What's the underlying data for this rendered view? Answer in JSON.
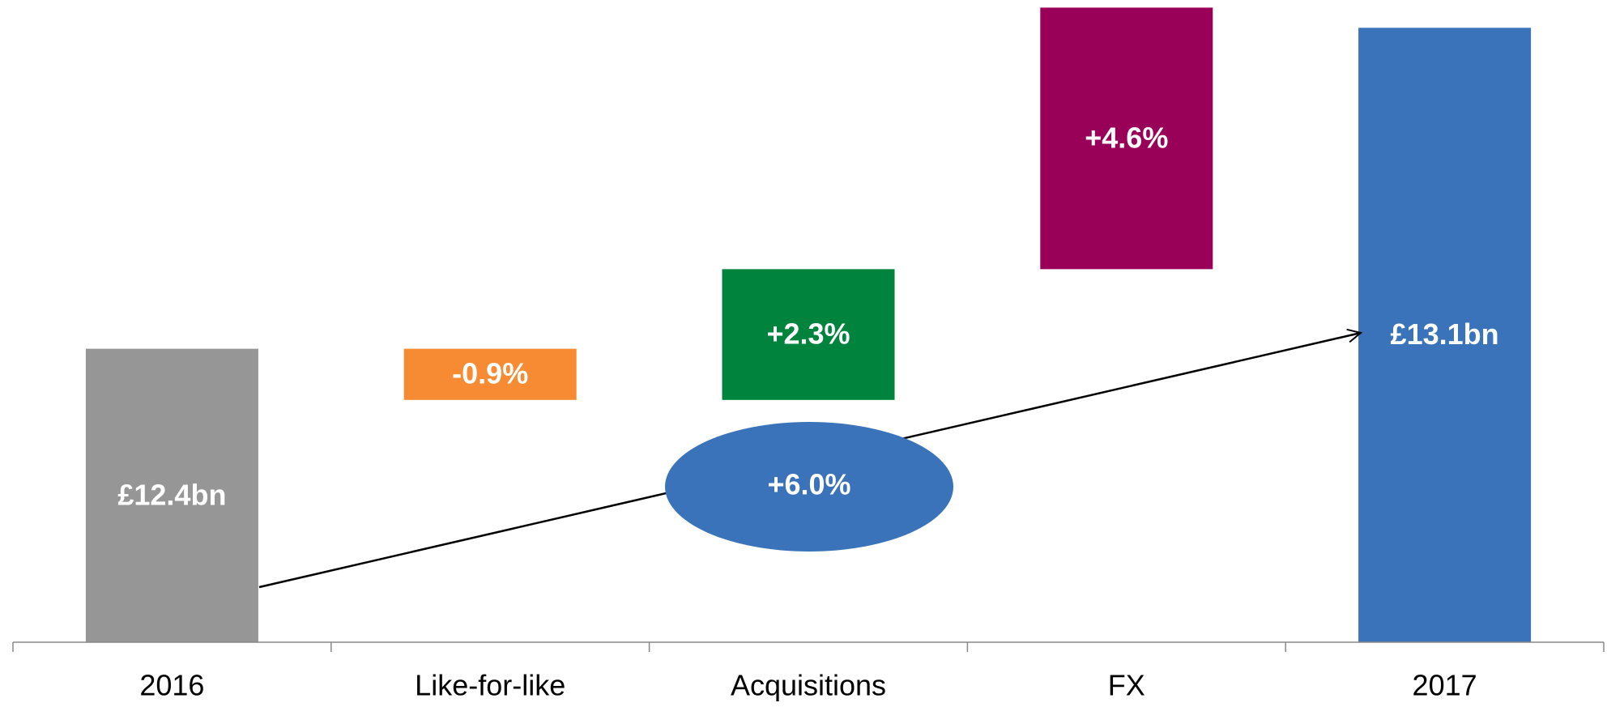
{
  "chart_data": {
    "type": "waterfall",
    "categories": [
      "2016",
      "Like-for-like",
      "Acquisitions",
      "FX",
      "2017"
    ],
    "values": [
      12.4,
      -0.9,
      2.3,
      4.6,
      13.1
    ],
    "value_labels": [
      "£12.4bn",
      "-0.9%",
      "+2.3%",
      "+4.6%",
      "£13.1bn"
    ],
    "measures": [
      "total",
      "relative",
      "relative",
      "relative",
      "total"
    ],
    "colors": [
      "#969696",
      "#f68b33",
      "#00843d",
      "#990058",
      "#3a73b9"
    ],
    "ylim": [
      11.76,
      13.15
    ],
    "annotation": "+6.0%"
  }
}
